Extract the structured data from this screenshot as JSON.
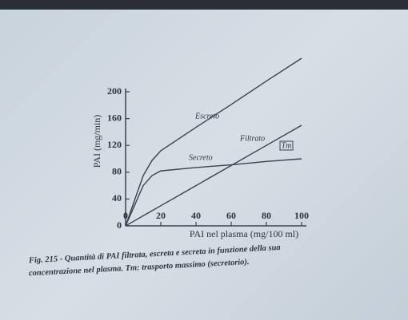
{
  "chart_data": {
    "type": "line",
    "x": [
      0,
      5,
      10,
      15,
      20,
      40,
      60,
      80,
      100
    ],
    "series": [
      {
        "name": "Escreto",
        "color": "#3a4250",
        "values": [
          0,
          37.5,
          75,
          97.5,
          112,
          147,
          181,
          216,
          250
        ]
      },
      {
        "name": "Filtrato",
        "color": "#3a4250",
        "values": [
          0,
          7.5,
          15,
          22.5,
          30,
          60,
          90,
          120,
          150
        ]
      },
      {
        "name": "Secreto",
        "color": "#3a4250",
        "values": [
          0,
          30,
          60,
          75,
          82,
          87,
          91,
          96,
          100
        ]
      }
    ],
    "annotations": [
      "Tm"
    ],
    "xlabel": "PAI nel plasma (mg/100 ml)",
    "ylabel": "PAI (mg/min)",
    "xlim": [
      0,
      100
    ],
    "xticks": [
      0,
      20,
      40,
      60,
      80,
      100
    ],
    "ylim": [
      0,
      200
    ],
    "yticks": [
      0,
      40,
      80,
      120,
      160,
      200
    ],
    "caption": [
      "Fig. 215 - Quantità di PAI filtrata, escreta e secreta in funzione della sua",
      "concentrazione nel plasma. Tm: trasporto massimo (secretorio)."
    ]
  }
}
